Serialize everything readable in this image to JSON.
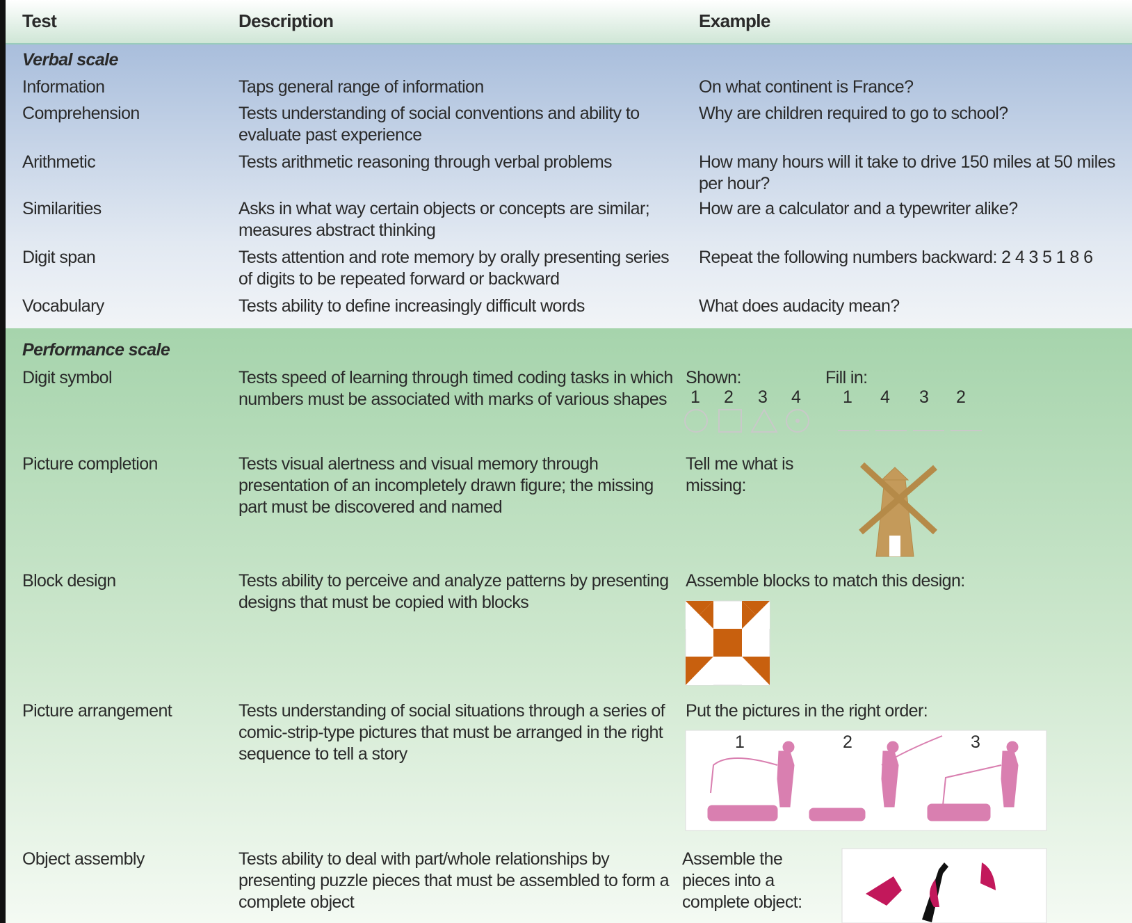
{
  "table": {
    "columns": [
      "Test",
      "Description",
      "Example"
    ],
    "sections": [
      {
        "title": "Verbal scale",
        "rows": [
          {
            "test": "Information",
            "description": "Taps general range of information",
            "example": "On what continent is France?"
          },
          {
            "test": "Comprehension",
            "description": "Tests understanding of social conventions and ability to evaluate past experience",
            "example": "Why are children required to go to school?"
          },
          {
            "test": "Arithmetic",
            "description": "Tests arithmetic reasoning through verbal problems",
            "example": "How many hours will it take to drive 150 miles at 50 miles per hour?"
          },
          {
            "test": "Similarities",
            "description": "Asks in what way certain objects or concepts are similar; measures abstract thinking",
            "example": "How are a calculator and a typewriter alike?"
          },
          {
            "test": "Digit span",
            "description": "Tests attention and rote memory by orally presenting series of digits to be repeated forward or backward",
            "example": "Repeat the following numbers backward: 2 4 3 5 1 8 6"
          },
          {
            "test": "Vocabulary",
            "description": "Tests ability to define increasingly difficult words",
            "example": "What does audacity mean?"
          }
        ]
      },
      {
        "title": "Performance scale",
        "rows": [
          {
            "test": "Digit symbol",
            "description": "Tests speed of learning through timed coding tasks in which numbers must be associated with marks of various shapes",
            "example": {
              "shown_label": "Shown:",
              "shown_digits": [
                1,
                2,
                3,
                4
              ],
              "fill_label": "Fill in:",
              "fill_digits": [
                1,
                4,
                3,
                2
              ]
            }
          },
          {
            "test": "Picture completion",
            "description": "Tests visual alertness and visual memory through presentation of an incompletely drawn figure; the missing part must be discovered and named",
            "example": {
              "prompt": "Tell me what is missing:"
            }
          },
          {
            "test": "Block design",
            "description": "Tests ability to perceive and analyze patterns by presenting designs that must be copied with blocks",
            "example": {
              "prompt": "Assemble blocks to match this design:"
            }
          },
          {
            "test": "Picture arrangement",
            "description": "Tests understanding of social situations through a series of comic-strip-type pictures that must be arranged in the right sequence to tell a story",
            "example": {
              "prompt": "Put the pictures in the right order:",
              "panels": [
                1,
                2,
                3
              ]
            }
          },
          {
            "test": "Object assembly",
            "description": "Tests ability to deal with part/whole relationships by presenting puzzle pieces that must be assembled to form a complete object",
            "example": {
              "prompt": "Assemble the pieces into a complete object:"
            }
          }
        ]
      }
    ]
  }
}
